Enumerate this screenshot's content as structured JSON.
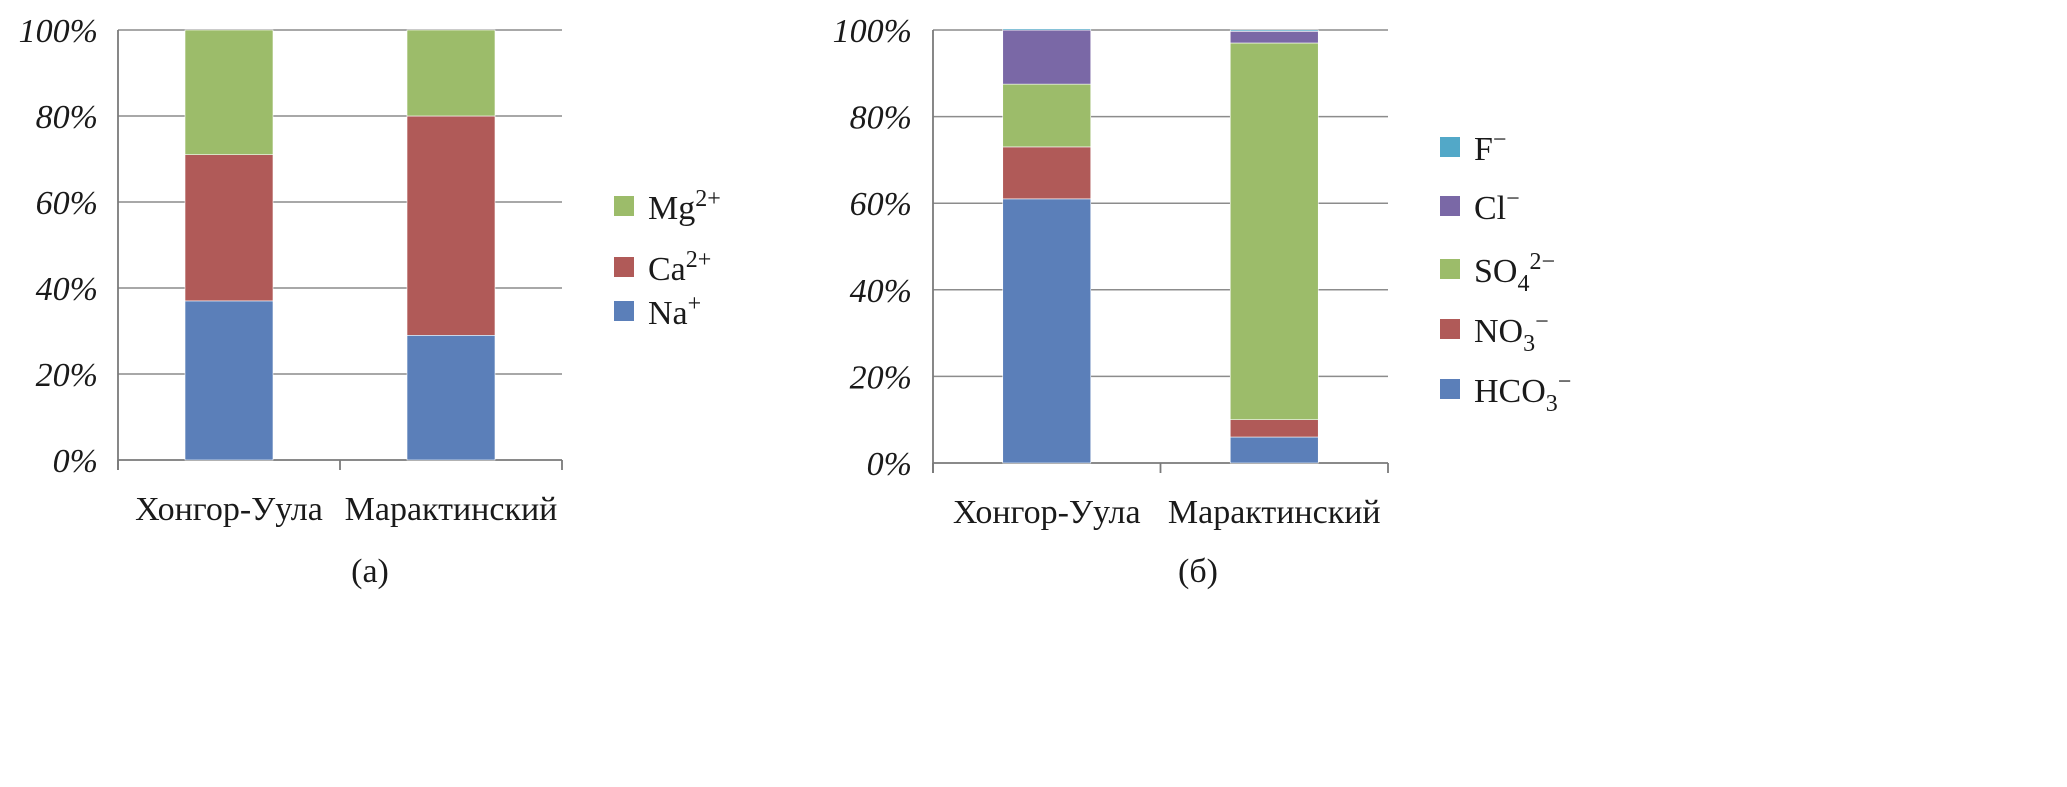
{
  "chart_data": [
    {
      "type": "bar",
      "stacked": true,
      "percent": true,
      "caption": "(а)",
      "categories": [
        "Хонгор-Уула",
        "Марактинский"
      ],
      "ytick_labels": [
        "0%",
        "20%",
        "40%",
        "60%",
        "80%",
        "100%"
      ],
      "ylim": [
        0,
        100
      ],
      "grid": true,
      "legend_position": "right",
      "series": [
        {
          "name": "Na+",
          "label_base": "Na",
          "label_sub": "",
          "label_sup": "+",
          "color": "#5b7fb9",
          "values": [
            37,
            29
          ]
        },
        {
          "name": "Ca2+",
          "label_base": "Ca",
          "label_sub": "",
          "label_sup": "2+",
          "color": "#b05a58",
          "values": [
            34,
            51
          ]
        },
        {
          "name": "Mg2+",
          "label_base": "Mg",
          "label_sub": "",
          "label_sup": "2+",
          "color": "#9cbc6a",
          "values": [
            29,
            20
          ]
        }
      ]
    },
    {
      "type": "bar",
      "stacked": true,
      "percent": true,
      "caption": "(б)",
      "categories": [
        "Хонгор-Уула",
        "Марактинский"
      ],
      "ytick_labels": [
        "0%",
        "20%",
        "40%",
        "60%",
        "80%",
        "100%"
      ],
      "ylim": [
        0,
        100
      ],
      "grid": true,
      "legend_position": "right",
      "series": [
        {
          "name": "HCO3−",
          "label_base": "HCO",
          "label_sub": "3",
          "label_sup": "−",
          "color": "#5b7fb9",
          "values": [
            61,
            6
          ]
        },
        {
          "name": "NO3−",
          "label_base": "NO",
          "label_sub": "3",
          "label_sup": "−",
          "color": "#b05a58",
          "values": [
            12,
            4
          ]
        },
        {
          "name": "SO42−",
          "label_base": "SO",
          "label_sub": "4",
          "label_sup": "2−",
          "color": "#9cbc6a",
          "values": [
            14.5,
            87
          ]
        },
        {
          "name": "Cl−",
          "label_base": "Cl",
          "label_sub": "",
          "label_sup": "−",
          "color": "#7a68a6",
          "values": [
            12.5,
            2.7
          ]
        },
        {
          "name": "F−",
          "label_base": "F",
          "label_sub": "",
          "label_sup": "−",
          "color": "#52a8c8",
          "values": [
            0.3,
            0.3
          ]
        }
      ]
    }
  ]
}
